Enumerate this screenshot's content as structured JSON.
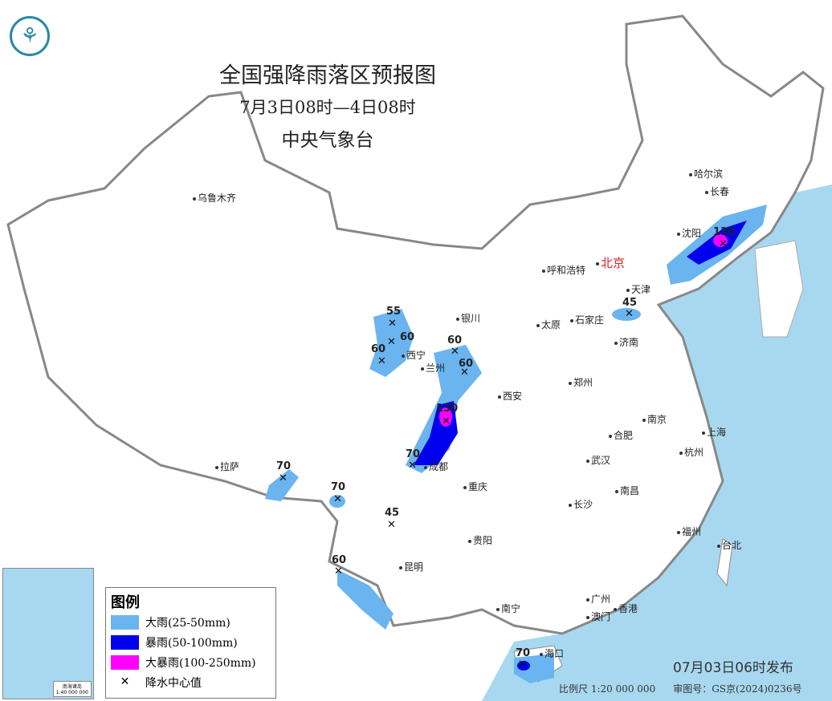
{
  "title": "全国强降雨落区预报图",
  "period": "7月3日08时—4日08时",
  "issuer": "中央气象台",
  "published": "07月03日06时发布",
  "scale": "比例尺 1:20 000 000",
  "review_no": "审图号：GS京(2024)0236号",
  "inset": {
    "label": "南海诸岛",
    "scale": "1:40 000 000"
  },
  "legend": {
    "heading": "图例",
    "items": [
      {
        "label": "大雨(25-50mm)",
        "color": "#6ab4f0"
      },
      {
        "label": "暴雨(50-100mm)",
        "color": "#0000ee"
      },
      {
        "label": "大暴雨(100-250mm)",
        "color": "#ff00ff"
      },
      {
        "label": "降水中心值",
        "icon": "x-mark-icon"
      }
    ]
  },
  "colors": {
    "sea": "#a8d8f0",
    "land": "#ffffff",
    "capital": "#e02020"
  },
  "cities": [
    "乌鲁木齐",
    "呼和浩特",
    "北京",
    "天津",
    "银川",
    "太原",
    "石家庄",
    "济南",
    "西宁",
    "兰州",
    "郑州",
    "西安",
    "南京",
    "上海",
    "合肥",
    "成都",
    "武汉",
    "杭州",
    "拉萨",
    "重庆",
    "长沙",
    "南昌",
    "福州",
    "台北",
    "贵阳",
    "昆明",
    "南宁",
    "广州",
    "澳门",
    "香港",
    "海口",
    "哈尔滨",
    "长春",
    "沈阳"
  ],
  "rain_centers": [
    "55",
    "60",
    "60",
    "60",
    "60",
    "130",
    "70",
    "130",
    "45",
    "70",
    "70",
    "45",
    "60",
    "70"
  ]
}
